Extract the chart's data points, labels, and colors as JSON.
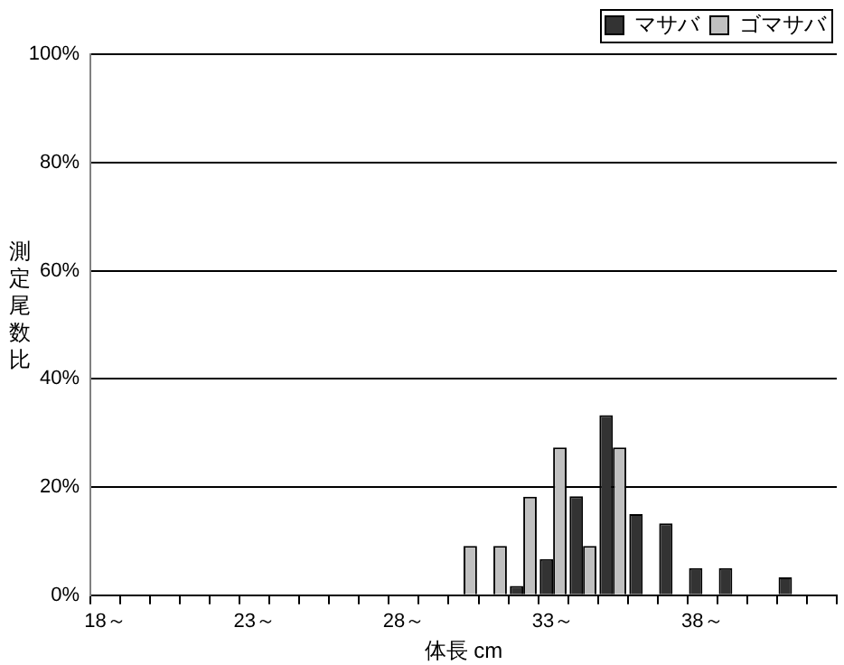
{
  "chart_data": {
    "type": "bar",
    "xlabel": "体長 cm",
    "ylabel": "測定尾数比",
    "categories": [
      "18～",
      null,
      null,
      null,
      null,
      "23～",
      null,
      null,
      null,
      null,
      "28～",
      null,
      null,
      null,
      null,
      "33～",
      null,
      null,
      null,
      null,
      "38～",
      null,
      null,
      null,
      null
    ],
    "series": [
      {
        "name": "マサバ",
        "color": "#333333",
        "values": [
          0,
          0,
          0,
          0,
          0,
          0,
          0,
          0,
          0,
          0,
          0,
          0,
          0,
          0,
          1.7,
          6.7,
          18.3,
          33.3,
          15,
          13.3,
          5,
          5,
          0,
          3.3,
          0
        ]
      },
      {
        "name": "ゴマサバ",
        "color": "#c0c0c0",
        "values": [
          0,
          0,
          0,
          0,
          0,
          0,
          0,
          0,
          0,
          0,
          0,
          0,
          9.1,
          9.1,
          18.2,
          27.3,
          9.1,
          27.3,
          0,
          0,
          0,
          0,
          0,
          0,
          0
        ]
      }
    ],
    "ylim": [
      0,
      100
    ],
    "yticks": [
      {
        "value": 0,
        "label": "0%"
      },
      {
        "value": 20,
        "label": "20%"
      },
      {
        "value": 40,
        "label": "40%"
      },
      {
        "value": 60,
        "label": "60%"
      },
      {
        "value": 80,
        "label": "80%"
      },
      {
        "value": 100,
        "label": "100%"
      }
    ],
    "grid": "y",
    "legend": "top right"
  }
}
